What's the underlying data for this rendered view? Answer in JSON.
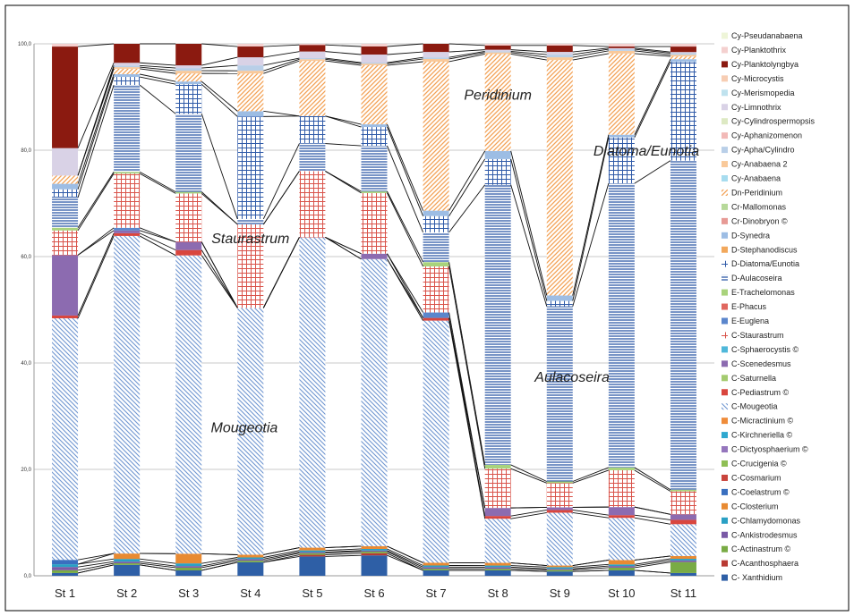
{
  "chart_data": {
    "type": "bar",
    "stacked": true,
    "normalized_percent": true,
    "categories": [
      "St 1",
      "St 2",
      "St 3",
      "St 4",
      "St 5",
      "St 6",
      "St 7",
      "St 8",
      "St 9",
      "St 10",
      "St 11"
    ],
    "ylim": [
      0,
      100
    ],
    "yticks": [
      "0,0",
      "20,0",
      "40,0",
      "60,0",
      "80,0",
      "100,0"
    ],
    "ytick_values": [
      0,
      20,
      40,
      60,
      80,
      100
    ],
    "grid": true,
    "legend_position": "right",
    "annotations": [
      "Peridinium",
      "Diatoma/Eunotia",
      "Staurastrum",
      "Aulacoseira",
      "Mougeotia"
    ],
    "legend": [
      {
        "name": "Cy-Pseudanabaena",
        "color": "#eef5d8",
        "pattern": "solid"
      },
      {
        "name": "Cy-Planktothrix",
        "color": "#f4d0cf",
        "pattern": "solid"
      },
      {
        "name": "Cy-Planktolyngbya",
        "color": "#8b1a10",
        "pattern": "solid"
      },
      {
        "name": "Cy-Microcystis",
        "color": "#f7cdb3",
        "pattern": "solid"
      },
      {
        "name": "Cy-Merismopedia",
        "color": "#bfe2ee",
        "pattern": "solid"
      },
      {
        "name": "Cy-Limnothrix",
        "color": "#d9d2e6",
        "pattern": "solid"
      },
      {
        "name": "Cy-Cylindrospermopsis",
        "color": "#dde9c3",
        "pattern": "solid"
      },
      {
        "name": "Cy-Aphanizomenon",
        "color": "#f2b9b7",
        "pattern": "solid"
      },
      {
        "name": "Cy-Apha/Cylindro",
        "color": "#b9cfe8",
        "pattern": "solid"
      },
      {
        "name": "Cy-Anabaena 2",
        "color": "#f9c99a",
        "pattern": "solid"
      },
      {
        "name": "Cy-Anabaena",
        "color": "#a7dcef",
        "pattern": "solid"
      },
      {
        "name": "Dn-Peridinium",
        "color": "#f3a154",
        "pattern": "diag"
      },
      {
        "name": "Cr-Mallomonas",
        "color": "#b7d99a",
        "pattern": "solid"
      },
      {
        "name": "Cr-Dinobryon ©",
        "color": "#e79a95",
        "pattern": "solid"
      },
      {
        "name": "D-Synedra",
        "color": "#9dbde4",
        "pattern": "solid"
      },
      {
        "name": "D-Stephanodiscus",
        "color": "#f2a85c",
        "pattern": "solid"
      },
      {
        "name": "D-Diatoma/Eunotia",
        "color": "#2f5aa8",
        "pattern": "grid"
      },
      {
        "name": "D-Aulacoseira",
        "color": "#2f5aa8",
        "pattern": "hlines"
      },
      {
        "name": "E-Trachelomonas",
        "color": "#a9d37c",
        "pattern": "solid"
      },
      {
        "name": "E-Phacus",
        "color": "#e0675f",
        "pattern": "solid"
      },
      {
        "name": "E-Euglena",
        "color": "#5b86cc",
        "pattern": "solid"
      },
      {
        "name": "C-Staurastrum",
        "color": "#d9534a",
        "pattern": "grid"
      },
      {
        "name": "C-Sphaerocystis ©",
        "color": "#4fb8da",
        "pattern": "solid"
      },
      {
        "name": "C-Scenedesmus",
        "color": "#8c6bb0",
        "pattern": "solid"
      },
      {
        "name": "C-Saturnella",
        "color": "#a4cb6f",
        "pattern": "solid"
      },
      {
        "name": "C-Pediastrum ©",
        "color": "#d9463e",
        "pattern": "solid"
      },
      {
        "name": "C-Mougeotia",
        "color": "#6e95d0",
        "pattern": "diagrev"
      },
      {
        "name": "C-Micractinium ©",
        "color": "#ef8c3a",
        "pattern": "solid"
      },
      {
        "name": "C-Kirchneriella ©",
        "color": "#2fa8cf",
        "pattern": "solid"
      },
      {
        "name": "C-Dictyosphaerium ©",
        "color": "#9576bd",
        "pattern": "solid"
      },
      {
        "name": "C-Crucigenia  ©",
        "color": "#8fbf55",
        "pattern": "solid"
      },
      {
        "name": "C-Cosmarium",
        "color": "#c9443c",
        "pattern": "solid"
      },
      {
        "name": "C-Coelastrum ©",
        "color": "#3a6fbf",
        "pattern": "solid"
      },
      {
        "name": "C-Closterium",
        "color": "#e88a32",
        "pattern": "solid"
      },
      {
        "name": "C-Chlamydomonas",
        "color": "#2aa0c4",
        "pattern": "solid"
      },
      {
        "name": "C-Ankistrodesmus",
        "color": "#7a5aa6",
        "pattern": "solid"
      },
      {
        "name": "C-Actinastrum ©",
        "color": "#79ab45",
        "pattern": "solid"
      },
      {
        "name": "C-Acanthosphaera",
        "color": "#b83a33",
        "pattern": "solid"
      },
      {
        "name": "C- Xanthidium",
        "color": "#2e5fa6",
        "pattern": "solid"
      }
    ],
    "series": [
      {
        "name": "C- Xanthidium",
        "values": [
          0.5,
          2,
          1,
          2.5,
          3.5,
          3.8,
          1,
          1,
          0.8,
          1,
          0.5
        ]
      },
      {
        "name": "C-Acanthosphaera",
        "values": [
          0,
          0,
          0,
          0,
          0.3,
          0.4,
          0,
          0,
          0,
          0,
          0
        ]
      },
      {
        "name": "C-Actinastrum ©",
        "values": [
          0.5,
          0.3,
          0.5,
          0.3,
          0.3,
          0.3,
          0.3,
          0.3,
          0.3,
          0.5,
          2
        ]
      },
      {
        "name": "C-Ankistrodesmus",
        "values": [
          0.6,
          0.3,
          0.3,
          0.3,
          0.2,
          0.2,
          0.3,
          0.3,
          0.2,
          0.3,
          0.3
        ]
      },
      {
        "name": "C-Chlamydomonas",
        "values": [
          0.5,
          0.5,
          0.5,
          0.3,
          0.3,
          0.3,
          0.3,
          0.3,
          0.3,
          0.3,
          0.3
        ]
      },
      {
        "name": "C-Closterium",
        "values": [
          0,
          1,
          1.8,
          0.5,
          0.5,
          0.5,
          0.5,
          0.5,
          0.3,
          0.8,
          0.5
        ]
      },
      {
        "name": "C-Coelastrum ©",
        "values": [
          0.8,
          0,
          0,
          0,
          0,
          0,
          0,
          0,
          0,
          0,
          0
        ]
      },
      {
        "name": "C-Mougeotia",
        "values": [
          44,
          58.5,
          55.4,
          45.8,
          56.3,
          53.5,
          44.7,
          8.2,
          9.8,
          7.8,
          5.8
        ]
      },
      {
        "name": "C-Pediastrum ©",
        "values": [
          0.5,
          0.5,
          1,
          0,
          0,
          0,
          0.5,
          0.5,
          0.5,
          0.5,
          0.8
        ]
      },
      {
        "name": "C-Scenedesmus",
        "values": [
          11,
          0.5,
          1.5,
          0,
          0,
          1,
          0,
          1.5,
          0.5,
          1.5,
          1
        ]
      },
      {
        "name": "E-Euglena",
        "values": [
          0,
          0.5,
          0,
          0,
          0,
          0,
          1,
          0,
          0,
          0,
          0
        ]
      },
      {
        "name": "C-Staurastrum",
        "values": [
          4.5,
          10,
          9,
          15.5,
          12,
          11.3,
          8.5,
          7.3,
          4.5,
          6.8,
          4.2
        ]
      },
      {
        "name": "E-Trachelomonas",
        "values": [
          0.5,
          0.3,
          0.3,
          0,
          0,
          0.3,
          0.8,
          0.7,
          0.3,
          0.5,
          0.3
        ]
      },
      {
        "name": "D-Aulacoseira",
        "values": [
          5.5,
          16,
          14.5,
          1,
          5,
          8.5,
          5.5,
          52,
          32.5,
          52.5,
          60
        ]
      },
      {
        "name": "D-Diatoma/Eunotia",
        "values": [
          1.5,
          1.5,
          5.5,
          19,
          5,
          3.5,
          3,
          4.8,
          1,
          8.5,
          18
        ]
      },
      {
        "name": "D-Synedra",
        "values": [
          1,
          0.5,
          0.5,
          1,
          0,
          0.5,
          1,
          1.5,
          1,
          0.5,
          0.5
        ]
      },
      {
        "name": "Dn-Peridinium",
        "values": [
          1.5,
          1,
          1.5,
          7,
          10,
          11,
          27.5,
          18,
          43.7,
          15,
          0.5
        ]
      },
      {
        "name": "Cy-Anabaena 2",
        "values": [
          0,
          0.3,
          0.5,
          0.5,
          0.3,
          0.3,
          0.5,
          0.3,
          0.5,
          0.5,
          0.3
        ]
      },
      {
        "name": "Cy-Apha/Cylindro",
        "values": [
          0,
          0.3,
          0.5,
          1,
          0.2,
          0.2,
          0.3,
          0.2,
          0.5,
          0.3,
          0.3
        ]
      },
      {
        "name": "Cy-Limnothrix",
        "values": [
          5,
          0.5,
          0.5,
          1.5,
          1.2,
          1.5,
          1,
          0.3,
          0.5,
          0.2,
          0.2
        ]
      },
      {
        "name": "Cy-Planktolyngbya",
        "values": [
          18.5,
          3.5,
          4,
          2,
          1.2,
          1.5,
          1.5,
          0.8,
          1.2,
          0.3,
          1
        ]
      },
      {
        "name": "Cy-Planktothrix",
        "values": [
          0.5,
          0,
          0,
          0.5,
          0.2,
          0.5,
          0,
          0.3,
          0.3,
          0.5,
          0.5
        ]
      }
    ]
  }
}
